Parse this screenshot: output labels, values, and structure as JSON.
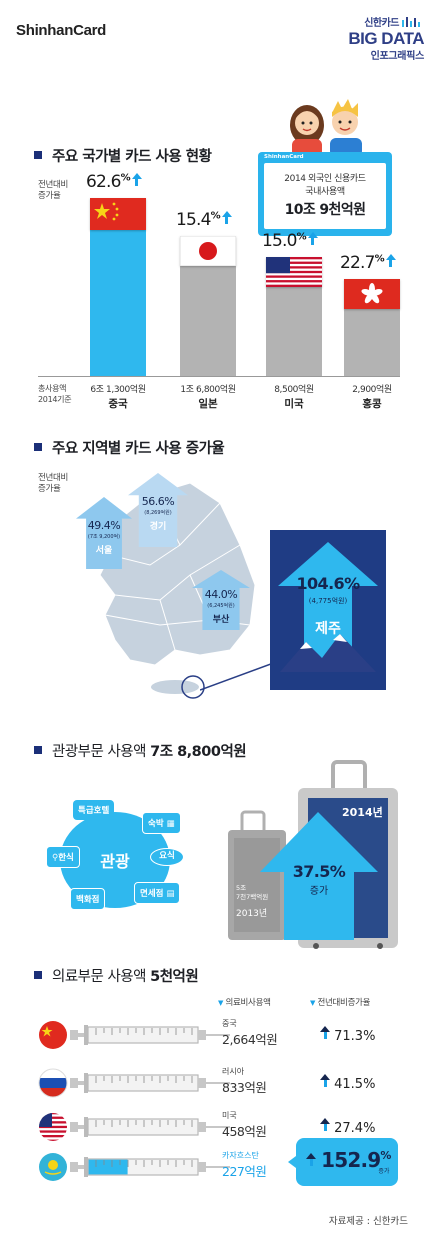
{
  "header": {
    "brand": "ShinhanCard",
    "right_top": "신한카드",
    "right_mid": "BIG DATA",
    "right_bottom": "인포그래픽스"
  },
  "section1": {
    "title": "주요 국가별 카드 사용 현황",
    "yoy_label_1": "전년대비",
    "yoy_label_2": "증가율",
    "total_label_1": "총사용액",
    "total_label_2": "2014기준",
    "callout": {
      "brand": "ShinhanCard",
      "line1": "2014 외국인 신용카드",
      "line2": "국내사용액",
      "amount": "10조 9천억원"
    },
    "pct_unit": "%"
  },
  "chart_data": {
    "type": "bar",
    "categories": [
      "중국",
      "일본",
      "미국",
      "홍콩"
    ],
    "amount_labels": [
      "6조 1,300억원",
      "1조 6,800억원",
      "8,500억원",
      "2,900억원"
    ],
    "values": [
      61300,
      16800,
      8500,
      2900
    ],
    "growth_pct": [
      62.6,
      15.4,
      15.0,
      22.7
    ],
    "growth_labels": [
      "62.6",
      "15.4",
      "15.0",
      "22.7"
    ],
    "colors": [
      "#2fb8ee",
      "#b3b3b3",
      "#b3b3b3",
      "#b3b3b3"
    ]
  },
  "section2": {
    "title": "주요 지역별 카드 사용 증가율",
    "yoy_label_1": "전년대비",
    "yoy_label_2": "증가율",
    "regions": [
      {
        "name": "서울",
        "pct": "49.4%",
        "amount": "(7조 9,200억)"
      },
      {
        "name": "경기",
        "pct": "56.6%",
        "amount": "(8,269억원)"
      },
      {
        "name": "부산",
        "pct": "44.0%",
        "amount": "(6,245억원)"
      },
      {
        "name": "제주",
        "pct": "104.6%",
        "amount": "(4,775억원)"
      }
    ]
  },
  "section3": {
    "title_prefix": "관광부문 사용액 ",
    "title_amount": "7조 8,800억원",
    "center": "관광",
    "items": [
      "특급호텔",
      "숙박",
      "한식",
      "요식",
      "백화점",
      "면세점"
    ],
    "year_new": "2014년",
    "year_old_amount_1": "5조",
    "year_old_amount_2": "7천7백억원",
    "year_old": "2013년",
    "growth_pct": "37.5%",
    "growth_label": "증가"
  },
  "section4": {
    "title_prefix": "의료부문 사용액 ",
    "title_amount": "5천억원",
    "col1": "의료비사용액",
    "col2": "전년대비증가율",
    "rows": [
      {
        "country": "중국",
        "amount": "2,664억원",
        "growth": "71.3%",
        "fill": 0.0
      },
      {
        "country": "러시아",
        "amount": "833억원",
        "growth": "41.5%",
        "fill": 0.0
      },
      {
        "country": "미국",
        "amount": "458억원",
        "growth": "27.4%",
        "fill": 0.0
      },
      {
        "country": "카자흐스탄",
        "amount": "227억원",
        "growth": "152.9",
        "growth_unit": "%",
        "growth_label": "증가",
        "fill": 0.35
      }
    ]
  },
  "footer": {
    "source": "자료제공 : 신한카드"
  }
}
